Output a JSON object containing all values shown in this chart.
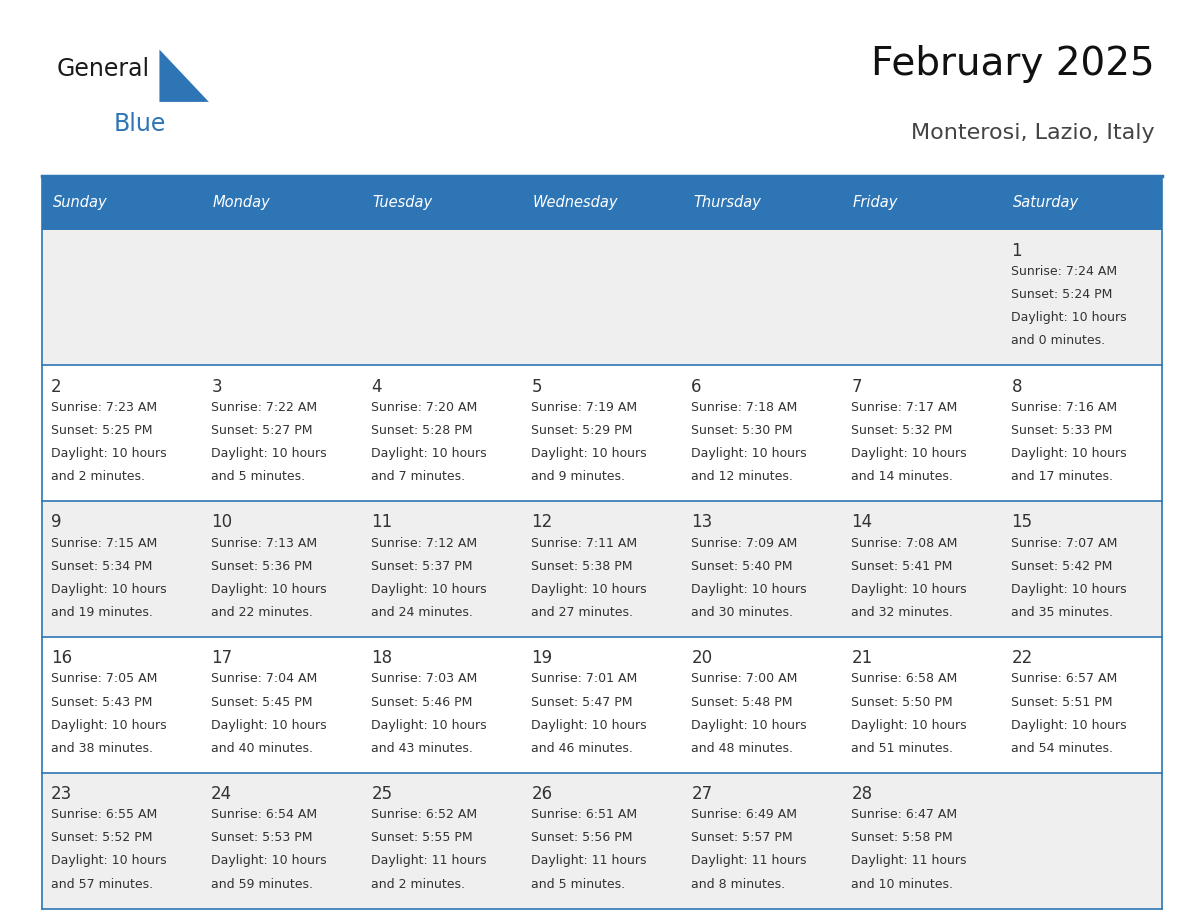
{
  "title": "February 2025",
  "subtitle": "Monterosi, Lazio, Italy",
  "header_color": "#2E75B6",
  "header_text_color": "#FFFFFF",
  "border_color": "#2E75B6",
  "text_color": "#333333",
  "row_colors": [
    "#EFEFEF",
    "#FFFFFF",
    "#EFEFEF",
    "#FFFFFF",
    "#EFEFEF"
  ],
  "days_of_week": [
    "Sunday",
    "Monday",
    "Tuesday",
    "Wednesday",
    "Thursday",
    "Friday",
    "Saturday"
  ],
  "logo_color1": "#1a1a1a",
  "logo_color2": "#2E75B6",
  "calendar": [
    [
      null,
      null,
      null,
      null,
      null,
      null,
      {
        "day": 1,
        "sunrise": "7:24 AM",
        "sunset": "5:24 PM",
        "daylight_h": "10 hours",
        "daylight_m": "and 0 minutes."
      }
    ],
    [
      {
        "day": 2,
        "sunrise": "7:23 AM",
        "sunset": "5:25 PM",
        "daylight_h": "10 hours",
        "daylight_m": "and 2 minutes."
      },
      {
        "day": 3,
        "sunrise": "7:22 AM",
        "sunset": "5:27 PM",
        "daylight_h": "10 hours",
        "daylight_m": "and 5 minutes."
      },
      {
        "day": 4,
        "sunrise": "7:20 AM",
        "sunset": "5:28 PM",
        "daylight_h": "10 hours",
        "daylight_m": "and 7 minutes."
      },
      {
        "day": 5,
        "sunrise": "7:19 AM",
        "sunset": "5:29 PM",
        "daylight_h": "10 hours",
        "daylight_m": "and 9 minutes."
      },
      {
        "day": 6,
        "sunrise": "7:18 AM",
        "sunset": "5:30 PM",
        "daylight_h": "10 hours",
        "daylight_m": "and 12 minutes."
      },
      {
        "day": 7,
        "sunrise": "7:17 AM",
        "sunset": "5:32 PM",
        "daylight_h": "10 hours",
        "daylight_m": "and 14 minutes."
      },
      {
        "day": 8,
        "sunrise": "7:16 AM",
        "sunset": "5:33 PM",
        "daylight_h": "10 hours",
        "daylight_m": "and 17 minutes."
      }
    ],
    [
      {
        "day": 9,
        "sunrise": "7:15 AM",
        "sunset": "5:34 PM",
        "daylight_h": "10 hours",
        "daylight_m": "and 19 minutes."
      },
      {
        "day": 10,
        "sunrise": "7:13 AM",
        "sunset": "5:36 PM",
        "daylight_h": "10 hours",
        "daylight_m": "and 22 minutes."
      },
      {
        "day": 11,
        "sunrise": "7:12 AM",
        "sunset": "5:37 PM",
        "daylight_h": "10 hours",
        "daylight_m": "and 24 minutes."
      },
      {
        "day": 12,
        "sunrise": "7:11 AM",
        "sunset": "5:38 PM",
        "daylight_h": "10 hours",
        "daylight_m": "and 27 minutes."
      },
      {
        "day": 13,
        "sunrise": "7:09 AM",
        "sunset": "5:40 PM",
        "daylight_h": "10 hours",
        "daylight_m": "and 30 minutes."
      },
      {
        "day": 14,
        "sunrise": "7:08 AM",
        "sunset": "5:41 PM",
        "daylight_h": "10 hours",
        "daylight_m": "and 32 minutes."
      },
      {
        "day": 15,
        "sunrise": "7:07 AM",
        "sunset": "5:42 PM",
        "daylight_h": "10 hours",
        "daylight_m": "and 35 minutes."
      }
    ],
    [
      {
        "day": 16,
        "sunrise": "7:05 AM",
        "sunset": "5:43 PM",
        "daylight_h": "10 hours",
        "daylight_m": "and 38 minutes."
      },
      {
        "day": 17,
        "sunrise": "7:04 AM",
        "sunset": "5:45 PM",
        "daylight_h": "10 hours",
        "daylight_m": "and 40 minutes."
      },
      {
        "day": 18,
        "sunrise": "7:03 AM",
        "sunset": "5:46 PM",
        "daylight_h": "10 hours",
        "daylight_m": "and 43 minutes."
      },
      {
        "day": 19,
        "sunrise": "7:01 AM",
        "sunset": "5:47 PM",
        "daylight_h": "10 hours",
        "daylight_m": "and 46 minutes."
      },
      {
        "day": 20,
        "sunrise": "7:00 AM",
        "sunset": "5:48 PM",
        "daylight_h": "10 hours",
        "daylight_m": "and 48 minutes."
      },
      {
        "day": 21,
        "sunrise": "6:58 AM",
        "sunset": "5:50 PM",
        "daylight_h": "10 hours",
        "daylight_m": "and 51 minutes."
      },
      {
        "day": 22,
        "sunrise": "6:57 AM",
        "sunset": "5:51 PM",
        "daylight_h": "10 hours",
        "daylight_m": "and 54 minutes."
      }
    ],
    [
      {
        "day": 23,
        "sunrise": "6:55 AM",
        "sunset": "5:52 PM",
        "daylight_h": "10 hours",
        "daylight_m": "and 57 minutes."
      },
      {
        "day": 24,
        "sunrise": "6:54 AM",
        "sunset": "5:53 PM",
        "daylight_h": "10 hours",
        "daylight_m": "and 59 minutes."
      },
      {
        "day": 25,
        "sunrise": "6:52 AM",
        "sunset": "5:55 PM",
        "daylight_h": "11 hours",
        "daylight_m": "and 2 minutes."
      },
      {
        "day": 26,
        "sunrise": "6:51 AM",
        "sunset": "5:56 PM",
        "daylight_h": "11 hours",
        "daylight_m": "and 5 minutes."
      },
      {
        "day": 27,
        "sunrise": "6:49 AM",
        "sunset": "5:57 PM",
        "daylight_h": "11 hours",
        "daylight_m": "and 8 minutes."
      },
      {
        "day": 28,
        "sunrise": "6:47 AM",
        "sunset": "5:58 PM",
        "daylight_h": "11 hours",
        "daylight_m": "and 10 minutes."
      },
      null
    ]
  ]
}
